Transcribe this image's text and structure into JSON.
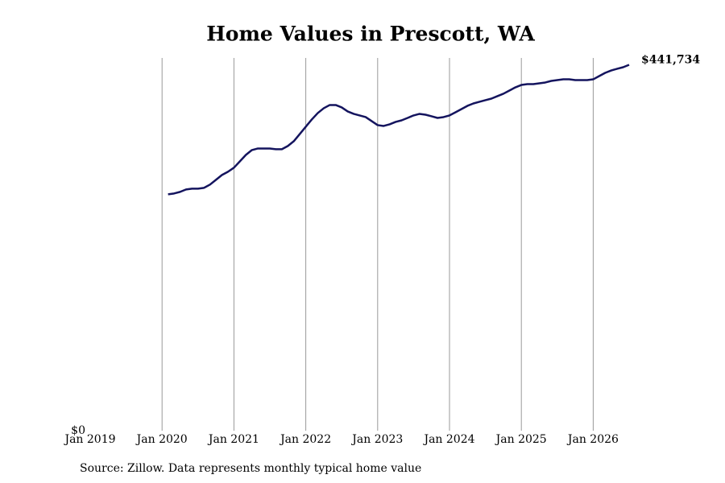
{
  "chart_data": {
    "type": "line",
    "title": "Home Values in Prescott, WA",
    "source": "Source: Zillow. Data represents monthly typical home value",
    "x": [
      "2020-02",
      "2020-03",
      "2020-04",
      "2020-05",
      "2020-06",
      "2020-07",
      "2020-08",
      "2020-09",
      "2020-10",
      "2020-11",
      "2020-12",
      "2021-01",
      "2021-02",
      "2021-03",
      "2021-04",
      "2021-05",
      "2021-06",
      "2021-07",
      "2021-08",
      "2021-09",
      "2021-10",
      "2021-11",
      "2021-12",
      "2022-01",
      "2022-02",
      "2022-03",
      "2022-04",
      "2022-05",
      "2022-06",
      "2022-07",
      "2022-08",
      "2022-09",
      "2022-10",
      "2022-11",
      "2022-12",
      "2023-01",
      "2023-02",
      "2023-03",
      "2023-04",
      "2023-05",
      "2023-06",
      "2023-07",
      "2023-08",
      "2023-09",
      "2023-10",
      "2023-11",
      "2023-12",
      "2024-01",
      "2024-02",
      "2024-03",
      "2024-04",
      "2024-05",
      "2024-06",
      "2024-07",
      "2024-08",
      "2024-09",
      "2024-10",
      "2024-11",
      "2024-12",
      "2025-01",
      "2025-02",
      "2025-03",
      "2025-04",
      "2025-05",
      "2025-06",
      "2025-07",
      "2025-08",
      "2025-09",
      "2025-10",
      "2025-11",
      "2025-12",
      "2026-01",
      "2026-02",
      "2026-03",
      "2026-04",
      "2026-05",
      "2026-06",
      "2026-07"
    ],
    "series": [
      {
        "color": "#14145e",
        "values": [
          285400,
          286400,
          288300,
          291200,
          292200,
          292200,
          293200,
          297100,
          302900,
          308700,
          312600,
          317500,
          325200,
          333000,
          338800,
          340700,
          340700,
          340700,
          339800,
          339800,
          343700,
          349500,
          358200,
          367000,
          375700,
          383500,
          389300,
          393200,
          393200,
          390300,
          385400,
          382500,
          380600,
          378600,
          373800,
          368900,
          367900,
          369900,
          372800,
          374700,
          377600,
          380600,
          382500,
          381500,
          379600,
          377600,
          378600,
          380600,
          384400,
          388300,
          392200,
          395100,
          397100,
          399000,
          400900,
          403900,
          406800,
          410600,
          414500,
          417400,
          418400,
          418400,
          419400,
          420400,
          422300,
          423300,
          424200,
          424200,
          423300,
          423300,
          423300,
          424200,
          428100,
          432000,
          434900,
          436900,
          438800,
          441734
        ],
        "value_labels": [
          null,
          null,
          null,
          null,
          null,
          null,
          null,
          null,
          null,
          null,
          null,
          null,
          null,
          null,
          null,
          null,
          null,
          null,
          null,
          null,
          null,
          null,
          null,
          null,
          null,
          null,
          null,
          null,
          null,
          null,
          null,
          null,
          null,
          null,
          null,
          null,
          null,
          null,
          null,
          null,
          null,
          null,
          null,
          null,
          null,
          null,
          null,
          null,
          null,
          null,
          null,
          null,
          null,
          null,
          null,
          null,
          null,
          null,
          null,
          null,
          null,
          null,
          null,
          null,
          null,
          null,
          null,
          null,
          null,
          null,
          null,
          null,
          null,
          null,
          null,
          null,
          null,
          "$441,734"
        ]
      }
    ],
    "xlim": [
      "2019-01",
      "2026-07"
    ],
    "xticks": [
      {
        "value": "2019-01",
        "label": "Jan 2019"
      },
      {
        "value": "2020-01",
        "label": "Jan 2020"
      },
      {
        "value": "2021-01",
        "label": "Jan 2021"
      },
      {
        "value": "2022-01",
        "label": "Jan 2022"
      },
      {
        "value": "2023-01",
        "label": "Jan 2023"
      },
      {
        "value": "2024-01",
        "label": "Jan 2024"
      },
      {
        "value": "2025-01",
        "label": "Jan 2025"
      },
      {
        "value": "2026-01",
        "label": "Jan 2026"
      }
    ],
    "ylim": [
      0,
      450000
    ],
    "yticks": [
      {
        "value": 0,
        "label": "$0"
      }
    ],
    "grid": "x"
  }
}
